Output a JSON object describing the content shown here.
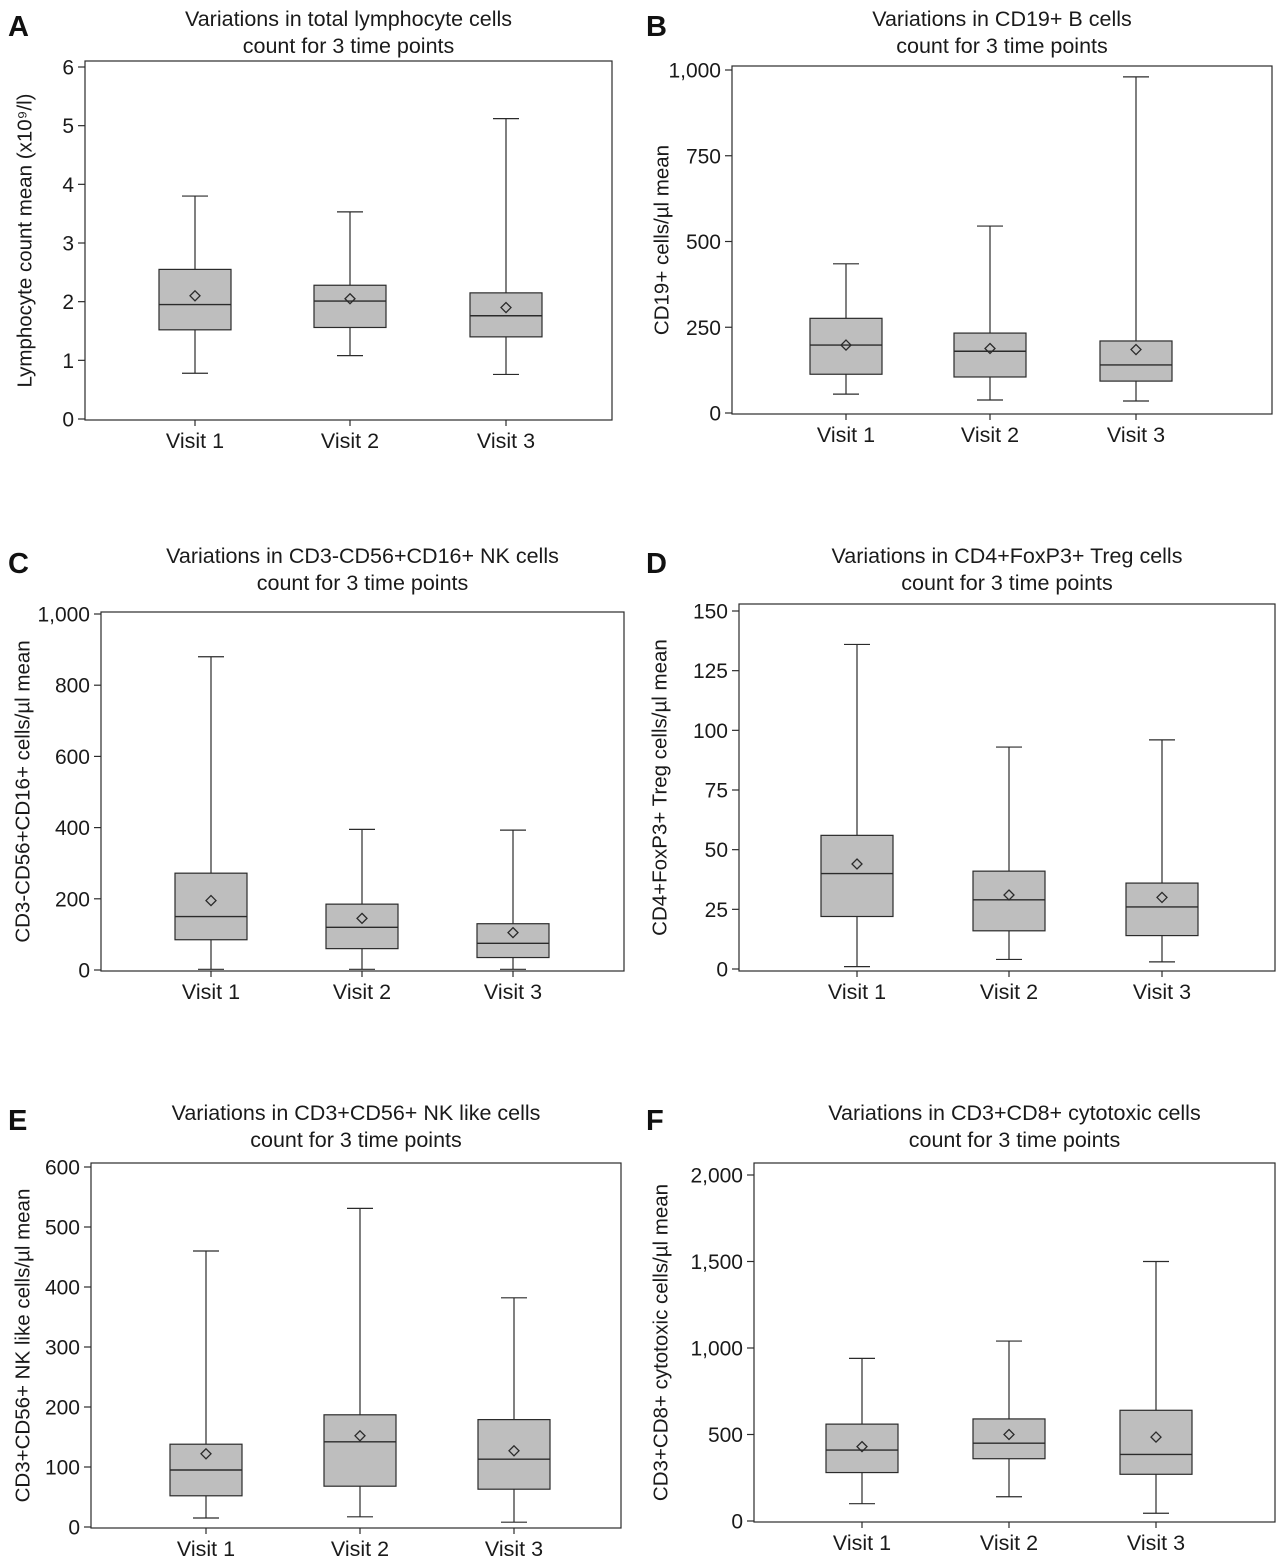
{
  "colors": {
    "box_fill": "#bebebe",
    "stroke": "#2b2b2b",
    "background": "#ffffff"
  },
  "chart_data": [
    {
      "panel_label": "A",
      "type": "boxplot",
      "title": [
        "Variations in total lymphocyte cells",
        "count for 3 time points"
      ],
      "ylabel": "Lymphocyte count mean (x10⁹/l)",
      "categories": [
        "Visit 1",
        "Visit 2",
        "Visit 3"
      ],
      "ylim": [
        0,
        6
      ],
      "yticks": [
        0,
        1,
        2,
        3,
        4,
        5,
        6
      ],
      "ytick_labels": [
        "0",
        "1",
        "2",
        "3",
        "4",
        "5",
        "6"
      ],
      "boxes": [
        {
          "min": 0.78,
          "q1": 1.52,
          "median": 1.95,
          "q3": 2.55,
          "max": 3.8,
          "mean": 2.1
        },
        {
          "min": 1.08,
          "q1": 1.56,
          "median": 2.01,
          "q3": 2.28,
          "max": 3.53,
          "mean": 2.05
        },
        {
          "min": 0.76,
          "q1": 1.4,
          "median": 1.76,
          "q3": 2.15,
          "max": 5.12,
          "mean": 1.9
        }
      ]
    },
    {
      "panel_label": "B",
      "type": "boxplot",
      "title": [
        "Variations in CD19+ B cells",
        "count for 3 time points"
      ],
      "ylabel": "CD19+ cells/µl mean",
      "categories": [
        "Visit 1",
        "Visit 2",
        "Visit 3"
      ],
      "ylim": [
        0,
        1000
      ],
      "yticks": [
        0,
        250,
        500,
        750,
        1000
      ],
      "ytick_labels": [
        "0",
        "250",
        "500",
        "750",
        "1,000"
      ],
      "boxes": [
        {
          "min": 55,
          "q1": 113,
          "median": 198,
          "q3": 276,
          "max": 435,
          "mean": 198
        },
        {
          "min": 38,
          "q1": 105,
          "median": 180,
          "q3": 233,
          "max": 545,
          "mean": 188
        },
        {
          "min": 35,
          "q1": 93,
          "median": 140,
          "q3": 210,
          "max": 980,
          "mean": 185
        }
      ]
    },
    {
      "panel_label": "C",
      "type": "boxplot",
      "title": [
        "Variations in CD3-CD56+CD16+ NK cells",
        "count for 3 time points"
      ],
      "ylabel": "CD3-CD56+CD16+ cells/µl mean",
      "categories": [
        "Visit 1",
        "Visit 2",
        "Visit 3"
      ],
      "ylim": [
        0,
        1000
      ],
      "yticks": [
        0,
        200,
        400,
        600,
        800,
        1000
      ],
      "ytick_labels": [
        "0",
        "200",
        "400",
        "600",
        "800",
        "1,000"
      ],
      "boxes": [
        {
          "min": 2,
          "q1": 85,
          "median": 150,
          "q3": 272,
          "max": 880,
          "mean": 195
        },
        {
          "min": 2,
          "q1": 60,
          "median": 120,
          "q3": 185,
          "max": 395,
          "mean": 145
        },
        {
          "min": 2,
          "q1": 35,
          "median": 75,
          "q3": 130,
          "max": 393,
          "mean": 105
        }
      ]
    },
    {
      "panel_label": "D",
      "type": "boxplot",
      "title": [
        "Variations in CD4+FoxP3+ Treg cells",
        "count for 3 time points"
      ],
      "ylabel": "CD4+FoxP3+ Treg cells/µl mean",
      "categories": [
        "Visit 1",
        "Visit 2",
        "Visit 3"
      ],
      "ylim": [
        0,
        150
      ],
      "yticks": [
        0,
        25,
        50,
        75,
        100,
        125,
        150
      ],
      "ytick_labels": [
        "0",
        "25",
        "50",
        "75",
        "100",
        "125",
        "150"
      ],
      "boxes": [
        {
          "min": 1,
          "q1": 22,
          "median": 40,
          "q3": 56,
          "max": 136,
          "mean": 44
        },
        {
          "min": 4,
          "q1": 16,
          "median": 29,
          "q3": 41,
          "max": 93,
          "mean": 31
        },
        {
          "min": 3,
          "q1": 14,
          "median": 26,
          "q3": 36,
          "max": 96,
          "mean": 30
        }
      ]
    },
    {
      "panel_label": "E",
      "type": "boxplot",
      "title": [
        "Variations in CD3+CD56+ NK like cells",
        "count for 3 time points"
      ],
      "ylabel": "CD3+CD56+ NK like cells/µl mean",
      "categories": [
        "Visit 1",
        "Visit 2",
        "Visit 3"
      ],
      "ylim": [
        0,
        600
      ],
      "yticks": [
        0,
        100,
        200,
        300,
        400,
        500,
        600
      ],
      "ytick_labels": [
        "0",
        "100",
        "200",
        "300",
        "400",
        "500",
        "600"
      ],
      "boxes": [
        {
          "min": 15,
          "q1": 52,
          "median": 95,
          "q3": 138,
          "max": 460,
          "mean": 122
        },
        {
          "min": 17,
          "q1": 68,
          "median": 142,
          "q3": 187,
          "max": 531,
          "mean": 152
        },
        {
          "min": 8,
          "q1": 63,
          "median": 113,
          "q3": 179,
          "max": 382,
          "mean": 127
        }
      ]
    },
    {
      "panel_label": "F",
      "type": "boxplot",
      "title": [
        "Variations in CD3+CD8+ cytotoxic cells",
        "count for 3 time points"
      ],
      "ylabel": "CD3+CD8+ cytotoxic cells/µl mean",
      "categories": [
        "Visit 1",
        "Visit 2",
        "Visit 3"
      ],
      "ylim": [
        0,
        2000
      ],
      "yticks": [
        0,
        500,
        1000,
        1500,
        2000
      ],
      "ytick_labels": [
        "0",
        "500",
        "1,000",
        "1,500",
        "2,000"
      ],
      "boxes": [
        {
          "min": 100,
          "q1": 280,
          "median": 410,
          "q3": 560,
          "max": 940,
          "mean": 430
        },
        {
          "min": 140,
          "q1": 360,
          "median": 450,
          "q3": 590,
          "max": 1040,
          "mean": 500
        },
        {
          "min": 45,
          "q1": 270,
          "median": 385,
          "q3": 640,
          "max": 1500,
          "mean": 485
        }
      ]
    }
  ]
}
